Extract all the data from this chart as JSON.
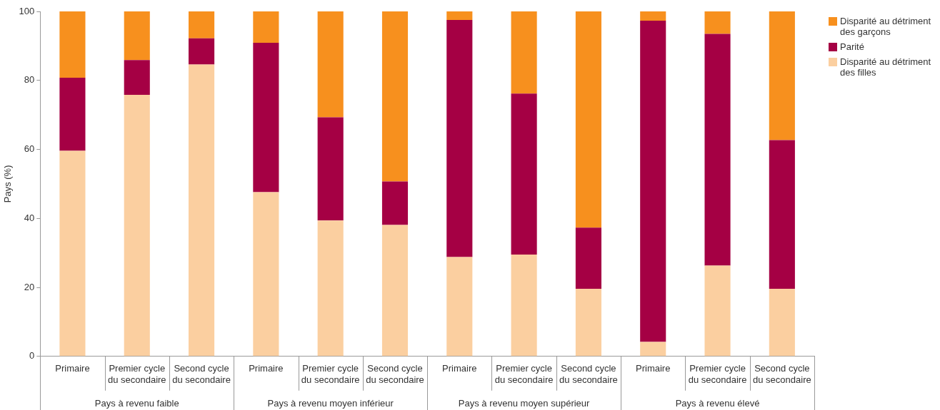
{
  "chart_data": {
    "type": "bar",
    "stacked": true,
    "ylabel": "Pays (%)",
    "categories": [
      "Primaire",
      "Premier cycle du secondaire",
      "Second cycle du secondaire",
      "Primaire",
      "Premier cycle du secondaire",
      "Second cycle du secondaire",
      "Primaire",
      "Premier cycle du secondaire",
      "Second cycle du secondaire",
      "Primaire",
      "Premier cycle du secondaire",
      "Second cycle du secondaire"
    ],
    "annotations": [
      "Pays à revenu faible",
      "Pays à revenu moyen inférieur",
      "Pays à revenu moyen supérieur",
      "Pays à revenu élevé"
    ],
    "series": [
      {
        "name": "Disparité au détriment des filles",
        "color": "#fbcfa0",
        "values": [
          59.6,
          75.8,
          84.6,
          47.6,
          39.4,
          38.1,
          28.8,
          29.5,
          19.6,
          4.2,
          26.3,
          19.6
        ]
      },
      {
        "name": "Parité",
        "color": "#a50044",
        "values": [
          21.2,
          10.1,
          7.6,
          43.3,
          29.9,
          12.6,
          68.7,
          46.7,
          17.7,
          93.1,
          67.2,
          43.1
        ]
      },
      {
        "name": "Disparité au détriment des garçons",
        "color": "#f7901e",
        "values": [
          19.2,
          14.1,
          7.8,
          9.1,
          30.7,
          49.3,
          2.5,
          23.8,
          62.7,
          2.7,
          6.5,
          37.3
        ]
      }
    ],
    "ylim": [
      0,
      100
    ],
    "yticks": [
      0,
      20,
      40,
      60,
      80,
      100
    ],
    "grid": false,
    "legend": "top right"
  }
}
